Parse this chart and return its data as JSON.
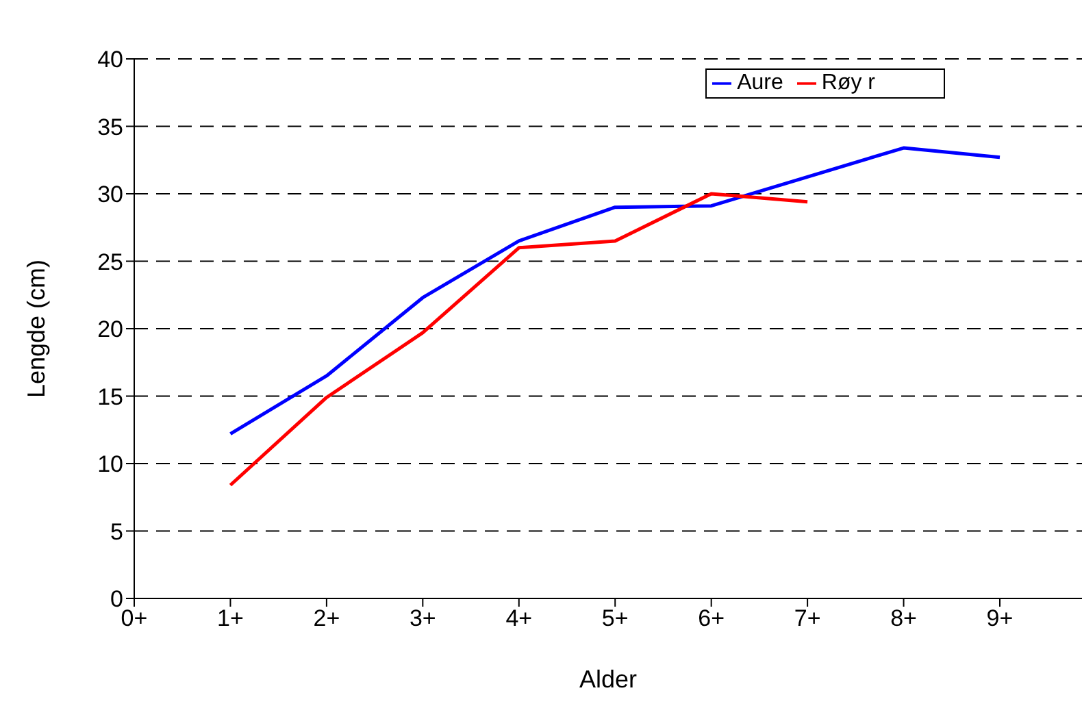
{
  "chart_data": {
    "type": "line",
    "xlabel": "Alder",
    "ylabel": "Lengde (cm)",
    "categories": [
      "0+",
      "1+",
      "2+",
      "3+",
      "4+",
      "5+",
      "6+",
      "7+",
      "8+",
      "9+"
    ],
    "ylim": [
      0,
      40
    ],
    "yticks": [
      0,
      5,
      10,
      15,
      20,
      25,
      30,
      35,
      40
    ],
    "grid": "y",
    "legend": "top right",
    "line_style": "solid",
    "series": [
      {
        "name": "Aure",
        "color": "#0000ff",
        "values": [
          null,
          12.2,
          16.5,
          22.3,
          26.5,
          29.0,
          29.1,
          null,
          33.4,
          32.7
        ]
      },
      {
        "name": "Røy r",
        "color": "#ff0000",
        "values": [
          null,
          8.4,
          14.9,
          19.7,
          26.0,
          26.5,
          30.0,
          29.4,
          null,
          null
        ]
      }
    ]
  }
}
